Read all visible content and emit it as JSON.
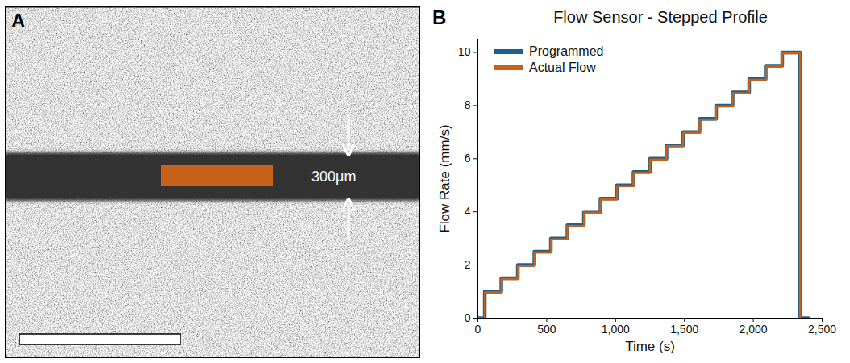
{
  "image_panel": {
    "letter": "A",
    "annotation": "300μm",
    "region_color": "#c8611a"
  },
  "chart_data": {
    "letter": "B",
    "type": "line",
    "title": "Flow Sensor - Stepped Profile",
    "x_label": "Time (s)",
    "y_label": "Flow Rate (mm/s)",
    "line_style": "step",
    "legend": "top-left",
    "x": [
      0,
      50,
      170,
      290,
      410,
      530,
      650,
      770,
      890,
      1010,
      1130,
      1250,
      1370,
      1490,
      1610,
      1730,
      1850,
      1970,
      2090,
      2210,
      2340,
      2400
    ],
    "series": [
      {
        "name": "Programmed",
        "color": "#1f5f8b",
        "values": [
          0,
          1.0,
          1.5,
          2.0,
          2.5,
          3.0,
          3.5,
          4.0,
          4.5,
          5.0,
          5.5,
          6.0,
          6.5,
          7.0,
          7.5,
          8.0,
          8.5,
          9.0,
          9.5,
          10.0,
          0,
          0
        ]
      },
      {
        "name": "Actual Flow",
        "color": "#c8611a",
        "values": [
          0,
          0.97,
          1.47,
          1.97,
          2.47,
          2.97,
          3.47,
          3.97,
          4.47,
          4.97,
          5.47,
          5.97,
          6.47,
          6.97,
          7.47,
          7.97,
          8.47,
          8.97,
          9.47,
          9.97,
          0,
          null
        ]
      }
    ],
    "xlim": [
      0,
      2500
    ],
    "xticks": [
      0,
      500,
      1000,
      1500,
      2000,
      2500
    ],
    "ylim": [
      0,
      10.5
    ],
    "yticks": [
      0,
      2,
      4,
      6,
      8,
      10
    ],
    "grid": false
  }
}
